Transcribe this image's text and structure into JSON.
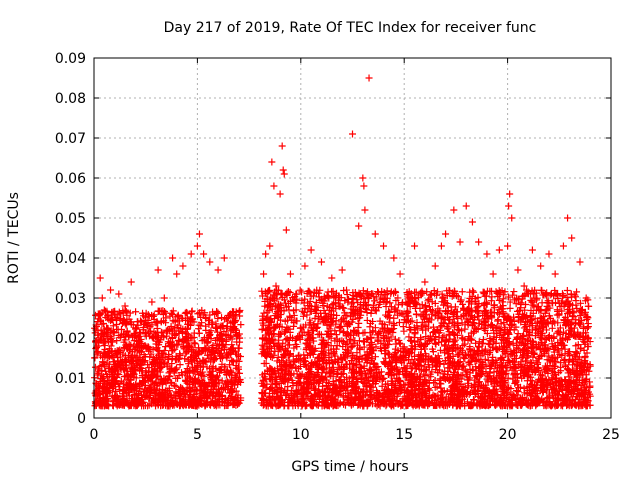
{
  "chart_data": {
    "type": "scatter",
    "title": "Day 217 of 2019, Rate Of TEC Index for receiver func",
    "xlabel": "GPS time / hours",
    "ylabel": "ROTI / TECUs",
    "xlim": [
      0,
      25
    ],
    "ylim": [
      0,
      0.09
    ],
    "xticks": [
      0,
      5,
      10,
      15,
      20,
      25
    ],
    "yticks": [
      0,
      0.01,
      0.02,
      0.03,
      0.04,
      0.05,
      0.06,
      0.07,
      0.08,
      0.09
    ],
    "xtick_labels": [
      "0",
      "5",
      "10",
      "15",
      "20",
      "25"
    ],
    "ytick_labels": [
      "0",
      "0.01",
      "0.02",
      "0.03",
      "0.04",
      "0.05",
      "0.06",
      "0.07",
      "0.08",
      "0.09"
    ],
    "grid": true,
    "marker": "+",
    "series": [
      {
        "name": "ROTI",
        "color": "#ff0000",
        "data_gap_hours": [
          7.1,
          8.1
        ],
        "points": [
          [
            0.1,
            0.022
          ],
          [
            0.2,
            0.018
          ],
          [
            0.3,
            0.035
          ],
          [
            0.4,
            0.03
          ],
          [
            0.5,
            0.027
          ],
          [
            0.8,
            0.032
          ],
          [
            1.2,
            0.031
          ],
          [
            1.5,
            0.028
          ],
          [
            1.8,
            0.034
          ],
          [
            2.3,
            0.024
          ],
          [
            2.8,
            0.029
          ],
          [
            3.1,
            0.037
          ],
          [
            3.4,
            0.03
          ],
          [
            3.8,
            0.04
          ],
          [
            4.0,
            0.036
          ],
          [
            4.3,
            0.038
          ],
          [
            4.7,
            0.041
          ],
          [
            5.0,
            0.043
          ],
          [
            5.1,
            0.046
          ],
          [
            5.3,
            0.041
          ],
          [
            5.6,
            0.039
          ],
          [
            6.0,
            0.037
          ],
          [
            6.3,
            0.04
          ],
          [
            6.6,
            0.026
          ],
          [
            6.9,
            0.019
          ],
          [
            8.2,
            0.036
          ],
          [
            8.3,
            0.041
          ],
          [
            8.5,
            0.043
          ],
          [
            8.6,
            0.064
          ],
          [
            8.7,
            0.058
          ],
          [
            8.8,
            0.033
          ],
          [
            9.0,
            0.056
          ],
          [
            9.1,
            0.068
          ],
          [
            9.15,
            0.062
          ],
          [
            9.2,
            0.061
          ],
          [
            9.3,
            0.047
          ],
          [
            9.5,
            0.036
          ],
          [
            9.8,
            0.031
          ],
          [
            10.2,
            0.038
          ],
          [
            10.5,
            0.042
          ],
          [
            11.0,
            0.039
          ],
          [
            11.5,
            0.035
          ],
          [
            12.0,
            0.037
          ],
          [
            12.5,
            0.071
          ],
          [
            12.8,
            0.048
          ],
          [
            13.0,
            0.06
          ],
          [
            13.05,
            0.058
          ],
          [
            13.1,
            0.052
          ],
          [
            13.3,
            0.085
          ],
          [
            13.6,
            0.046
          ],
          [
            14.0,
            0.043
          ],
          [
            14.5,
            0.04
          ],
          [
            14.8,
            0.036
          ],
          [
            15.2,
            0.03
          ],
          [
            15.5,
            0.043
          ],
          [
            15.8,
            0.018
          ],
          [
            16.0,
            0.034
          ],
          [
            16.5,
            0.038
          ],
          [
            16.8,
            0.043
          ],
          [
            17.0,
            0.046
          ],
          [
            17.4,
            0.052
          ],
          [
            17.7,
            0.044
          ],
          [
            18.0,
            0.053
          ],
          [
            18.3,
            0.049
          ],
          [
            18.6,
            0.044
          ],
          [
            19.0,
            0.041
          ],
          [
            19.3,
            0.036
          ],
          [
            19.6,
            0.042
          ],
          [
            20.0,
            0.043
          ],
          [
            20.05,
            0.053
          ],
          [
            20.1,
            0.056
          ],
          [
            20.2,
            0.05
          ],
          [
            20.5,
            0.037
          ],
          [
            20.8,
            0.033
          ],
          [
            21.2,
            0.042
          ],
          [
            21.6,
            0.038
          ],
          [
            22.0,
            0.041
          ],
          [
            22.3,
            0.036
          ],
          [
            22.7,
            0.043
          ],
          [
            22.9,
            0.05
          ],
          [
            23.1,
            0.045
          ],
          [
            23.5,
            0.039
          ],
          [
            23.8,
            0.03
          ]
        ],
        "bands": [
          {
            "x_range": [
              0.0,
              7.1
            ],
            "y_range": [
              0.003,
              0.027
            ],
            "count": 1600
          },
          {
            "x_range": [
              8.1,
              24.0
            ],
            "y_range": [
              0.003,
              0.032
            ],
            "count": 3800
          }
        ]
      }
    ]
  }
}
